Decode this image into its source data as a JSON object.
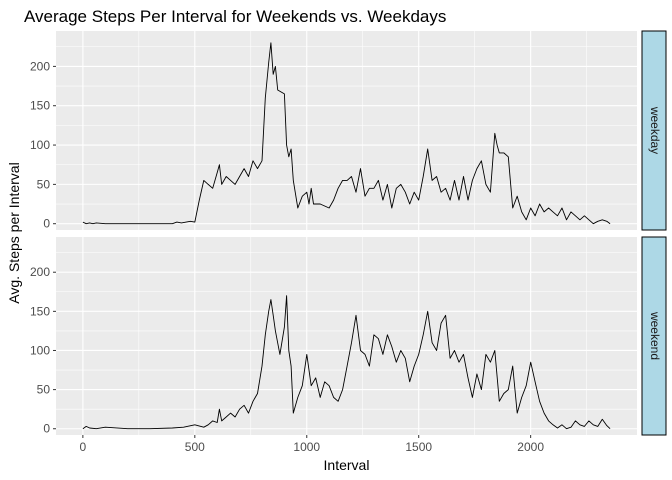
{
  "chart_data": {
    "type": "line",
    "title": "Average Steps Per Interval for Weekends vs. Weekdays",
    "xlabel": "Interval",
    "ylabel": "Avg. Steps per Interval",
    "xlim": [
      -120,
      2475
    ],
    "ylim": [
      -8,
      245
    ],
    "x_ticks": [
      0,
      500,
      1000,
      1500,
      2000
    ],
    "x_tick_labels": [
      "0",
      "500",
      "1000",
      "1500",
      "2000"
    ],
    "y_ticks": [
      0,
      50,
      100,
      150,
      200
    ],
    "y_tick_labels": [
      "0",
      "50",
      "100",
      "150",
      "200"
    ],
    "grid": true,
    "facets": [
      {
        "strip_label": "weekday",
        "x": [
          0,
          15,
          30,
          45,
          60,
          100,
          150,
          200,
          300,
          400,
          420,
          440,
          480,
          500,
          520,
          540,
          560,
          580,
          600,
          610,
          620,
          640,
          660,
          680,
          700,
          720,
          740,
          760,
          780,
          800,
          815,
          830,
          840,
          850,
          860,
          870,
          900,
          910,
          920,
          930,
          940,
          960,
          980,
          1000,
          1010,
          1020,
          1030,
          1060,
          1100,
          1120,
          1140,
          1160,
          1180,
          1200,
          1220,
          1240,
          1260,
          1280,
          1300,
          1320,
          1340,
          1360,
          1380,
          1400,
          1420,
          1440,
          1460,
          1480,
          1500,
          1520,
          1540,
          1560,
          1580,
          1600,
          1620,
          1640,
          1660,
          1680,
          1700,
          1720,
          1740,
          1760,
          1780,
          1800,
          1820,
          1840,
          1850,
          1860,
          1880,
          1900,
          1920,
          1940,
          1960,
          1980,
          2000,
          2020,
          2040,
          2060,
          2080,
          2100,
          2120,
          2140,
          2160,
          2180,
          2200,
          2220,
          2240,
          2260,
          2280,
          2300,
          2320,
          2340,
          2355
        ],
        "y": [
          2,
          0,
          1,
          0,
          1,
          0,
          0,
          0,
          0,
          0,
          2,
          1,
          3,
          2,
          30,
          55,
          50,
          45,
          65,
          75,
          50,
          60,
          55,
          50,
          60,
          70,
          60,
          80,
          70,
          80,
          160,
          205,
          230,
          190,
          200,
          170,
          165,
          100,
          85,
          95,
          55,
          20,
          35,
          40,
          25,
          45,
          25,
          25,
          20,
          30,
          45,
          55,
          55,
          60,
          40,
          70,
          35,
          45,
          45,
          55,
          30,
          50,
          20,
          45,
          50,
          40,
          25,
          40,
          30,
          60,
          95,
          55,
          60,
          40,
          45,
          30,
          55,
          30,
          60,
          30,
          55,
          70,
          80,
          50,
          40,
          115,
          100,
          90,
          90,
          85,
          20,
          35,
          15,
          5,
          20,
          10,
          25,
          15,
          20,
          15,
          10,
          20,
          5,
          15,
          10,
          5,
          10,
          5,
          0,
          3,
          5,
          3,
          0
        ],
        "values_precision": "estimated from gridlines"
      },
      {
        "strip_label": "weekend",
        "x": [
          0,
          15,
          30,
          60,
          100,
          200,
          300,
          400,
          450,
          500,
          540,
          560,
          580,
          600,
          610,
          620,
          640,
          660,
          680,
          700,
          720,
          740,
          760,
          780,
          800,
          815,
          830,
          840,
          850,
          860,
          880,
          900,
          910,
          920,
          930,
          940,
          960,
          980,
          1000,
          1020,
          1040,
          1060,
          1080,
          1100,
          1120,
          1140,
          1160,
          1180,
          1200,
          1220,
          1240,
          1260,
          1280,
          1300,
          1320,
          1340,
          1360,
          1380,
          1400,
          1420,
          1440,
          1460,
          1480,
          1500,
          1520,
          1540,
          1560,
          1580,
          1600,
          1620,
          1640,
          1660,
          1680,
          1700,
          1720,
          1740,
          1760,
          1780,
          1800,
          1820,
          1840,
          1860,
          1880,
          1900,
          1920,
          1940,
          1960,
          1980,
          2000,
          2020,
          2040,
          2060,
          2080,
          2100,
          2120,
          2140,
          2160,
          2180,
          2200,
          2220,
          2240,
          2260,
          2280,
          2300,
          2320,
          2340,
          2355
        ],
        "y": [
          0,
          3,
          1,
          0,
          2,
          0,
          0,
          1,
          2,
          5,
          2,
          5,
          10,
          8,
          25,
          10,
          15,
          20,
          15,
          25,
          30,
          20,
          35,
          45,
          80,
          120,
          150,
          165,
          145,
          125,
          95,
          130,
          170,
          100,
          80,
          20,
          40,
          55,
          95,
          55,
          65,
          40,
          60,
          55,
          40,
          35,
          50,
          80,
          110,
          145,
          100,
          95,
          80,
          120,
          115,
          95,
          120,
          105,
          85,
          100,
          90,
          60,
          80,
          95,
          120,
          150,
          110,
          100,
          135,
          145,
          90,
          100,
          85,
          95,
          65,
          40,
          70,
          50,
          95,
          85,
          100,
          35,
          45,
          50,
          80,
          20,
          40,
          55,
          85,
          60,
          35,
          20,
          10,
          5,
          1,
          5,
          0,
          2,
          10,
          5,
          3,
          10,
          5,
          3,
          12,
          4,
          0
        ],
        "values_precision": "estimated from gridlines"
      }
    ]
  }
}
